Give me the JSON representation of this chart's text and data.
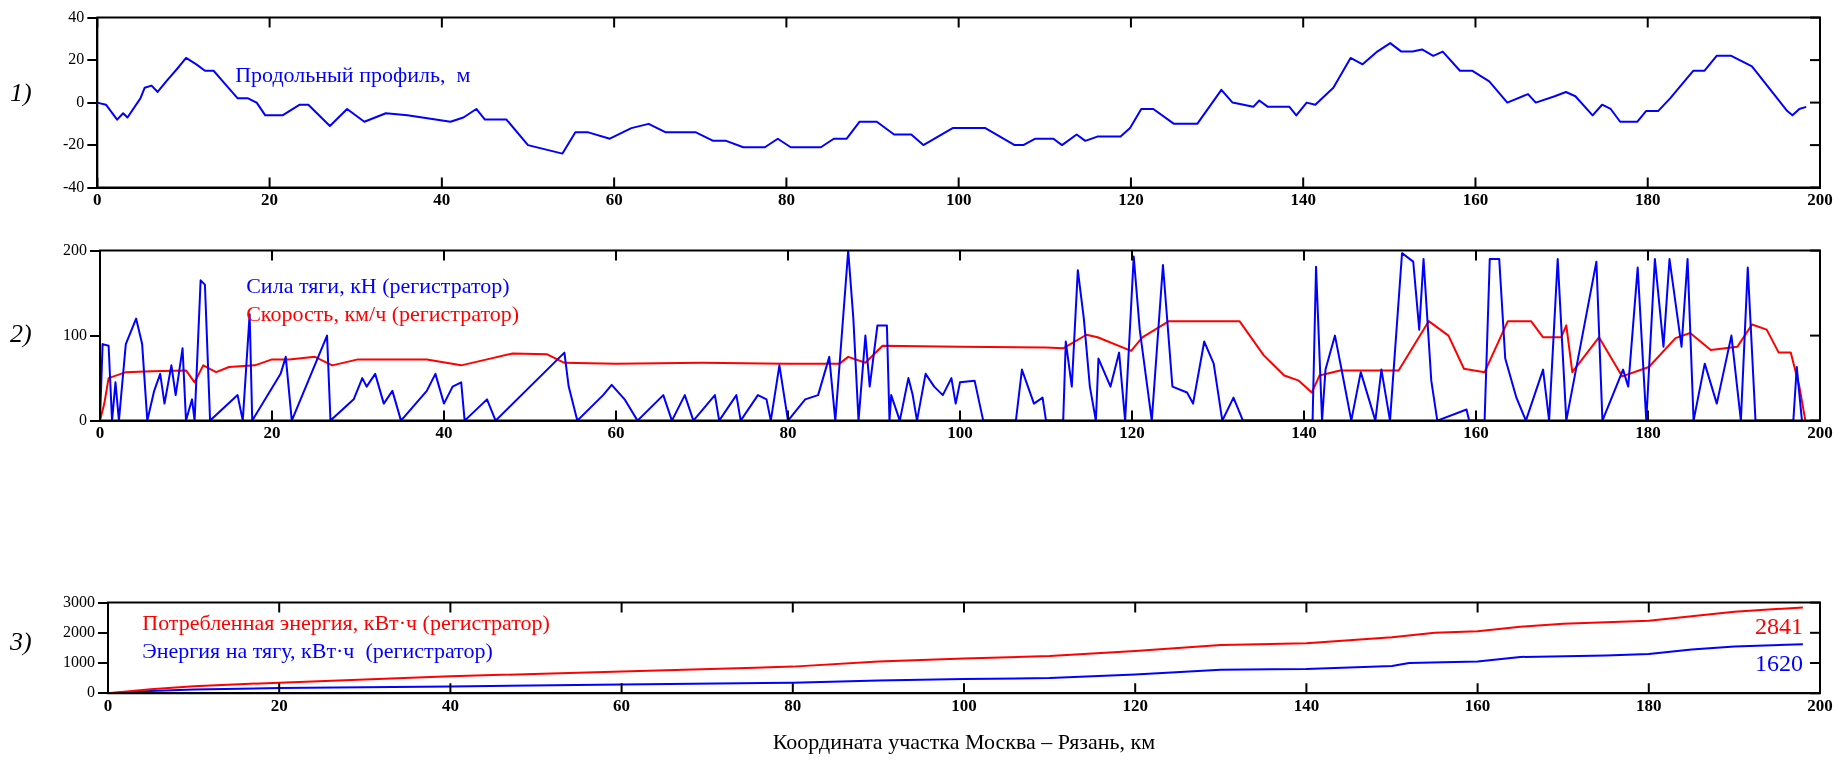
{
  "chart_data": [
    {
      "type": "line",
      "marker": "none",
      "annotations": [
        "1)"
      ],
      "xlim": [
        0,
        200
      ],
      "xticks": [
        0,
        20,
        40,
        60,
        80,
        100,
        120,
        140,
        160,
        180,
        200
      ],
      "ylim": [
        -40,
        40
      ],
      "yticks": [
        -40,
        -20,
        0,
        20,
        40
      ],
      "series": [
        {
          "name": "Продольный профиль,  м",
          "color": "#0000ff",
          "x": [
            0,
            1,
            2.3,
            3,
            3.5,
            5,
            5.5,
            6.3,
            7,
            8,
            9.5,
            10.3,
            11.5,
            12.5,
            13.5,
            15,
            16.3,
            17.5,
            18.5,
            19.5,
            21.5,
            23.5,
            24.5,
            27,
            29,
            31,
            33.5,
            36,
            41,
            42.5,
            44,
            45,
            47.5,
            50,
            54,
            55.5,
            57,
            59.5,
            62,
            64,
            66,
            69.5,
            71.5,
            73,
            75,
            77.5,
            79,
            80.5,
            84,
            85.5,
            87,
            88.5,
            90.5,
            92.5,
            94.5,
            95.9,
            99.3,
            103.1,
            106.5,
            107.5,
            108.9,
            111,
            112,
            113.7,
            114.7,
            116.1,
            118.8,
            119.9,
            121.2,
            122.6,
            125,
            127.7,
            130.5,
            131.8,
            134.2,
            134.9,
            135.9,
            138.4,
            139.2,
            140.4,
            141.4,
            143.5,
            145.5,
            146.9,
            148.6,
            150.1,
            151.4,
            152.7,
            153.8,
            155.1,
            156.2,
            158.2,
            159.6,
            161.6,
            163.7,
            166.1,
            167,
            169.2,
            170.5,
            171.6,
            173.6,
            174.7,
            175.7,
            176.8,
            178.8,
            179.8,
            181.2,
            182.6,
            185.3,
            186.6,
            188,
            189.7,
            192.1,
            196.2,
            196.8,
            197.6,
            198.4
          ],
          "values": [
            0,
            -1,
            -8,
            -5,
            -7,
            2,
            7,
            8,
            5,
            10,
            17,
            21,
            18,
            15,
            15,
            8,
            2,
            2,
            0,
            -6,
            -6,
            -1,
            -1,
            -11,
            -3,
            -9,
            -5,
            -6,
            -9,
            -7,
            -3,
            -8,
            -8,
            -20,
            -24,
            -14,
            -14,
            -17,
            -12,
            -10,
            -14,
            -14,
            -18,
            -18,
            -21,
            -21,
            -17,
            -21,
            -21,
            -17,
            -17,
            -9,
            -9,
            -15,
            -15,
            -20,
            -12,
            -12,
            -20,
            -20,
            -17,
            -17,
            -20,
            -15,
            -18,
            -16,
            -16,
            -12,
            -3,
            -3,
            -10,
            -10,
            6,
            0,
            -2,
            1,
            -2,
            -2,
            -6,
            0,
            -1,
            7,
            21,
            18,
            24,
            28,
            24,
            24,
            25,
            22,
            24,
            15,
            15,
            10,
            0,
            4,
            0,
            3,
            5,
            3,
            -6,
            -1,
            -3,
            -9,
            -9,
            -4,
            -4,
            2,
            15,
            15,
            22,
            22,
            17,
            -4,
            -6,
            -3,
            -2
          ]
        }
      ]
    },
    {
      "type": "line",
      "marker": "none",
      "annotations": [
        "2)"
      ],
      "xlim": [
        0,
        200
      ],
      "xticks": [
        0,
        20,
        40,
        60,
        80,
        100,
        120,
        140,
        160,
        180,
        200
      ],
      "ylim": [
        0,
        200
      ],
      "yticks": [
        0,
        100,
        200
      ],
      "series": [
        {
          "name": "Сила тяги, кН (регистратор)",
          "color": "#0000ff",
          "x": [
            0,
            0.3,
            1,
            1.4,
            1.8,
            2.2,
            3,
            4.2,
            4.9,
            5.5,
            6.3,
            7,
            7.5,
            8.3,
            8.8,
            9.6,
            10,
            10.7,
            11,
            11.7,
            12.2,
            12.8,
            16,
            16.6,
            17.4,
            17.7,
            21,
            21.6,
            22.3,
            26.4,
            26.8,
            29.5,
            30.5,
            31,
            32,
            33,
            34,
            35,
            38,
            39,
            40,
            41,
            42,
            42.4,
            45,
            46,
            54,
            54.5,
            55.5,
            58.5,
            59.5,
            61,
            62.5,
            65.5,
            66.5,
            68,
            69,
            71.5,
            72,
            74,
            74.5,
            76.5,
            77.5,
            78,
            79,
            80,
            82,
            83.5,
            84.8,
            85.5,
            87,
            87.6,
            88.2,
            89,
            89.5,
            90.4,
            91.5,
            91.8,
            92,
            93,
            94,
            94.5,
            95,
            96,
            97,
            98,
            99,
            99.5,
            100,
            101.7,
            102.7,
            106.5,
            107.2,
            108.6,
            109.6,
            110,
            112,
            112.3,
            113,
            113.7,
            114.4,
            115.1,
            115.8,
            116.1,
            117.5,
            118.5,
            119.2,
            120.2,
            120.9,
            122.3,
            123.6,
            124.7,
            126.4,
            127.1,
            128.4,
            129.5,
            130.5,
            131.8,
            132.9,
            141,
            141.4,
            142.1,
            142.5,
            143.6,
            144.5,
            145.5,
            146.6,
            148.3,
            149,
            150,
            151.4,
            152.7,
            153.4,
            153.9,
            154.8,
            155.5,
            158.9,
            159.2,
            161,
            161.6,
            162.7,
            163.4,
            164.7,
            165.8,
            167.8,
            168.5,
            169.5,
            170.5,
            174,
            174.7,
            177.1,
            177.7,
            178.8,
            179.8,
            180.8,
            181.8,
            182.5,
            183.9,
            184.6,
            185.3,
            186.6,
            188,
            189.7,
            190.8,
            191.6,
            192.5,
            196.9,
            197.3,
            197.9
          ],
          "values": [
            0,
            90,
            88,
            0,
            45,
            0,
            90,
            120,
            90,
            0,
            35,
            55,
            20,
            65,
            30,
            85,
            0,
            25,
            0,
            165,
            160,
            0,
            30,
            0,
            125,
            0,
            55,
            75,
            0,
            100,
            0,
            25,
            50,
            40,
            55,
            20,
            35,
            0,
            35,
            55,
            20,
            40,
            45,
            0,
            25,
            0,
            80,
            40,
            0,
            30,
            42,
            25,
            0,
            30,
            0,
            30,
            0,
            30,
            0,
            30,
            0,
            30,
            25,
            0,
            65,
            0,
            25,
            30,
            75,
            0,
            200,
            120,
            0,
            100,
            40,
            112,
            112,
            0,
            30,
            0,
            50,
            30,
            0,
            55,
            40,
            30,
            50,
            20,
            45,
            47,
            0,
            0,
            60,
            20,
            27,
            0,
            0,
            93,
            40,
            177,
            120,
            40,
            0,
            73,
            40,
            80,
            0,
            193,
            107,
            0,
            183,
            40,
            33,
            20,
            93,
            67,
            0,
            27,
            0,
            0,
            181,
            0,
            60,
            100,
            53,
            0,
            57,
            0,
            60,
            0,
            197,
            187,
            107,
            190,
            47,
            0,
            13,
            0,
            0,
            190,
            190,
            73,
            27,
            0,
            60,
            0,
            190,
            0,
            187,
            0,
            60,
            40,
            180,
            0,
            190,
            87,
            190,
            87,
            190,
            0,
            67,
            20,
            100,
            0,
            180,
            0,
            0,
            63,
            0
          ]
        },
        {
          "name": "Скорость, км/ч (регистратор)",
          "color": "#ff0000",
          "x": [
            0,
            0.5,
            1,
            3,
            6,
            10,
            11,
            12,
            13.5,
            15,
            18,
            20,
            22,
            25,
            27,
            30,
            38,
            42,
            45,
            48,
            52,
            54,
            60,
            70,
            80,
            86,
            87,
            89,
            91,
            100,
            110,
            112,
            114.7,
            116,
            119.9,
            121.2,
            124.3,
            132.5,
            135.3,
            137.7,
            139.4,
            140.9,
            141.8,
            144.2,
            151,
            154.5,
            156.8,
            158.6,
            161,
            163.7,
            166.4,
            167.8,
            169.9,
            170.5,
            171.2,
            174.3,
            177,
            180.1,
            183.2,
            184.9,
            187.3,
            190.4,
            192.1,
            193.8,
            195.2,
            196.6,
            197.6,
            198.3
          ],
          "values": [
            0,
            20,
            50,
            57,
            58,
            59,
            45,
            65,
            57,
            63,
            65,
            72,
            72,
            75,
            65,
            72,
            72,
            65,
            72,
            79,
            78,
            68,
            67,
            68,
            67,
            67,
            75,
            68,
            88,
            87,
            86,
            85,
            101,
            98,
            82,
            98,
            117,
            117,
            77,
            53,
            47,
            33,
            53,
            59,
            59,
            117,
            100,
            61,
            57,
            117,
            117,
            98,
            98,
            112,
            57,
            98,
            52,
            63,
            97,
            103,
            83,
            87,
            113,
            107,
            80,
            80,
            40,
            0
          ]
        }
      ]
    },
    {
      "type": "line",
      "marker": "none",
      "xlabel": "Координата участка Москва – Рязань, км",
      "annotations": [
        "3)",
        {
          "text": "2841",
          "x": 198,
          "y": 2841
        },
        {
          "text": "1620",
          "x": 198,
          "y": 1620
        }
      ],
      "xlim": [
        0,
        200
      ],
      "xticks": [
        0,
        20,
        40,
        60,
        80,
        100,
        120,
        140,
        160,
        180,
        200
      ],
      "ylim": [
        0,
        3000
      ],
      "yticks": [
        0,
        1000,
        2000,
        3000
      ],
      "series": [
        {
          "name": "Потребленная энергия, кВт·ч (регистратор)",
          "color": "#ff0000",
          "x": [
            0,
            5,
            10,
            20,
            40,
            60,
            80,
            90,
            100,
            110,
            120,
            130,
            140,
            150,
            155,
            160,
            165,
            170,
            180,
            185,
            190,
            198
          ],
          "values": [
            0,
            130,
            230,
            350,
            560,
            720,
            880,
            1050,
            1150,
            1230,
            1400,
            1600,
            1650,
            1850,
            2000,
            2050,
            2200,
            2300,
            2400,
            2550,
            2700,
            2841
          ]
        },
        {
          "name": "Энергия на тягу, кВт·ч  (регистратор)",
          "color": "#0000ff",
          "x": [
            0,
            5,
            10,
            20,
            40,
            60,
            80,
            90,
            100,
            110,
            120,
            130,
            140,
            150,
            152,
            160,
            165,
            175,
            180,
            185,
            190,
            198
          ],
          "values": [
            0,
            70,
            120,
            170,
            220,
            290,
            350,
            420,
            470,
            500,
            620,
            780,
            800,
            900,
            1000,
            1050,
            1200,
            1250,
            1300,
            1450,
            1550,
            1620
          ]
        }
      ]
    }
  ]
}
